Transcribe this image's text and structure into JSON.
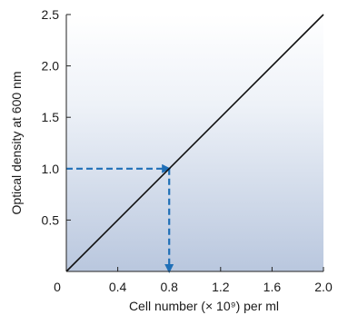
{
  "chart_data": {
    "type": "line",
    "title": "",
    "xlabel": "Cell number (× 10⁹) per ml",
    "ylabel": "Optical density at 600 nm",
    "xlim": [
      0,
      2.0
    ],
    "ylim": [
      0,
      2.5
    ],
    "x_ticks": [
      0,
      0.4,
      0.8,
      1.2,
      1.6,
      2.0
    ],
    "x_tick_labels": [
      "0",
      "0.4",
      "0.8",
      "1.2",
      "1.6",
      "2.0"
    ],
    "y_ticks": [
      0.5,
      1.0,
      1.5,
      2.0,
      2.5
    ],
    "y_tick_labels": [
      "0.5",
      "1.0",
      "1.5",
      "2.0",
      "2.5"
    ],
    "grid": false,
    "background": "gradient from #ffffff (top) to #b9c7de (bottom)",
    "series": [
      {
        "x": [
          0,
          2.0
        ],
        "y": [
          0,
          2.5
        ],
        "color": "#111111",
        "style": "solid"
      }
    ],
    "annotations": [
      {
        "type": "dashed-arrow",
        "from": [
          0,
          1.0
        ],
        "to": [
          0.8,
          1.0
        ],
        "color": "#1f6fb7"
      },
      {
        "type": "dashed-arrow",
        "from": [
          0.8,
          1.0
        ],
        "to": [
          0.8,
          0
        ],
        "color": "#1f6fb7"
      }
    ]
  }
}
